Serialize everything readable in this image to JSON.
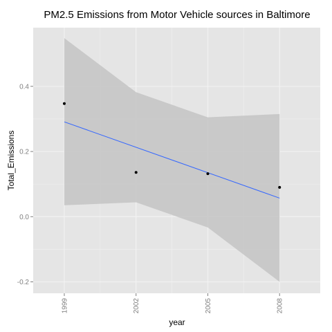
{
  "chart_data": {
    "type": "scatter",
    "title": "PM2.5 Emissions from Motor Vehicle sources in Baltimore",
    "xlabel": "year",
    "ylabel": "Total_Emissions",
    "x_ticks": [
      1999,
      2002,
      2005,
      2008
    ],
    "y_ticks": [
      -0.2,
      0.0,
      0.2,
      0.4
    ],
    "y_tick_labels": [
      "-0.2",
      "0.0",
      "0.2",
      "0.4"
    ],
    "xlim": [
      1997.7,
      2009.7
    ],
    "ylim": [
      -0.235,
      0.58
    ],
    "grid": true,
    "points": [
      {
        "x": 1999,
        "y": 0.347
      },
      {
        "x": 2002,
        "y": 0.136
      },
      {
        "x": 2005,
        "y": 0.132
      },
      {
        "x": 2008,
        "y": 0.09
      }
    ],
    "smooth": {
      "method": "linear",
      "fit": [
        {
          "x": 1999,
          "y": 0.291
        },
        {
          "x": 2008,
          "y": 0.057
        }
      ],
      "confidence_band": [
        {
          "x": 1999,
          "lower": 0.035,
          "upper": 0.548
        },
        {
          "x": 2002,
          "lower": 0.044,
          "upper": 0.382
        },
        {
          "x": 2005,
          "lower": -0.033,
          "upper": 0.305
        },
        {
          "x": 2008,
          "lower": -0.2,
          "upper": 0.315
        }
      ]
    },
    "colors": {
      "panel_background": "#e5e5e5",
      "gridline": "#f2f2f2",
      "point": "#000000",
      "fit_line": "#3366ff",
      "band": "#c4c4c4"
    }
  }
}
